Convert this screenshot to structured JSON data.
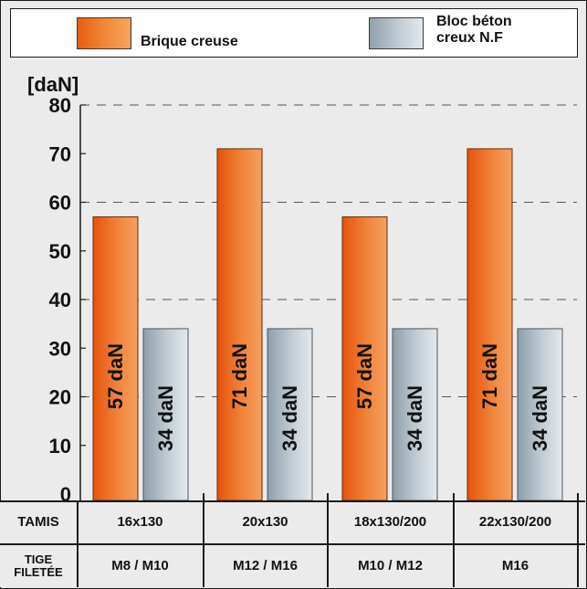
{
  "legend": {
    "series_1": "Brique creuse",
    "series_2": "Bloc béton\ncreux N.F"
  },
  "colors": {
    "orange": "#f07a2a",
    "grey": "#bcc7cf",
    "grid": "#555555"
  },
  "table": {
    "row1_header": "TAMIS",
    "row2_header_line1": "TIGE",
    "row2_header_line2": "FILETÉE",
    "tamis": [
      "16x130",
      "20x130",
      "18x130/200",
      "22x130/200"
    ],
    "tige": [
      "M8 / M10",
      "M12 / M16",
      "M10 / M12",
      "M16"
    ]
  },
  "chart_data": {
    "type": "bar",
    "ylabel": "[daN]",
    "ylim": [
      0,
      80
    ],
    "yticks": [
      "0",
      "10",
      "20",
      "30",
      "40",
      "50",
      "60",
      "70",
      "80"
    ],
    "categories": [
      "16x130",
      "20x130",
      "18x130/200",
      "22x130/200"
    ],
    "grid": "horizontal dashed",
    "legend_position": "top",
    "series": [
      {
        "name": "Brique creuse",
        "values": [
          57,
          71,
          57,
          71
        ],
        "labels": [
          "57 daN",
          "71 daN",
          "57 daN",
          "71 daN"
        ]
      },
      {
        "name": "Bloc béton creux N.F",
        "values": [
          34,
          34,
          34,
          34
        ],
        "labels": [
          "34 daN",
          "34 daN",
          "34 daN",
          "34 daN"
        ]
      }
    ]
  }
}
